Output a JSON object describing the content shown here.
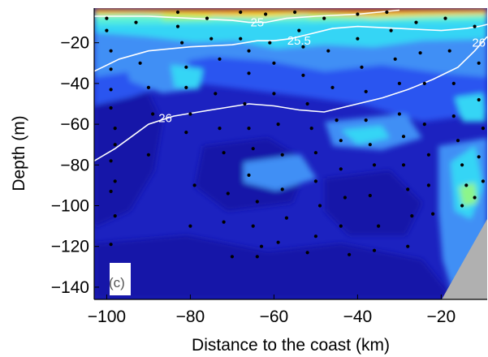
{
  "chart_data": {
    "type": "contour",
    "panel_label": "(c)",
    "xlabel": "Distance to the coast (km)",
    "ylabel": "Depth (m)",
    "xlim": [
      -103,
      -9
    ],
    "ylim": [
      -146,
      -3
    ],
    "xticks": [
      -100,
      -80,
      -60,
      -40,
      -20
    ],
    "xtick_labels": [
      "−100",
      "−80",
      "−60",
      "−40",
      "−20"
    ],
    "yticks": [
      -20,
      -40,
      -60,
      -80,
      -100,
      -120,
      -140
    ],
    "ytick_labels": [
      "−20",
      "−40",
      "−60",
      "−80",
      "−100",
      "−120",
      "−140"
    ],
    "colors": {
      "deep_blue": "#1515a8",
      "blue": "#2030e0",
      "mid_blue": "#2a55f0",
      "light_blue": "#3f8ff5",
      "cyan": "#35d5f5",
      "aqua": "#58f0d8",
      "green": "#8df58a",
      "yellow": "#f2e528",
      "orange": "#f59a18",
      "red": "#c81c0a",
      "land": "#b0b0b0",
      "isoline": "#ffffff",
      "sample_point": "#000000"
    },
    "isolines": [
      {
        "label": "25",
        "points": [
          [
            -103,
            -7
          ],
          [
            -90,
            -7
          ],
          [
            -80,
            -8
          ],
          [
            -70,
            -9
          ],
          [
            -66,
            -10
          ],
          [
            -62,
            -10
          ],
          [
            -57,
            -8
          ],
          [
            -50,
            -7
          ],
          [
            -40,
            -6
          ],
          [
            -30,
            -4
          ]
        ]
      },
      {
        "label": "25.5",
        "points": [
          [
            -103,
            -34
          ],
          [
            -97,
            -28
          ],
          [
            -90,
            -24
          ],
          [
            -80,
            -22
          ],
          [
            -70,
            -21
          ],
          [
            -64,
            -19
          ],
          [
            -60,
            -19
          ],
          [
            -56,
            -18
          ],
          [
            -52,
            -16
          ],
          [
            -46,
            -13
          ],
          [
            -40,
            -12
          ],
          [
            -30,
            -13
          ],
          [
            -20,
            -14
          ],
          [
            -14,
            -13
          ],
          [
            -11,
            -12
          ],
          [
            -9,
            -11
          ]
        ]
      },
      {
        "label": "26",
        "points": [
          [
            -103,
            -78
          ],
          [
            -98,
            -72
          ],
          [
            -94,
            -66
          ],
          [
            -90,
            -60
          ],
          [
            -84,
            -56
          ],
          [
            -78,
            -54
          ],
          [
            -72,
            -52
          ],
          [
            -66,
            -50
          ],
          [
            -60,
            -51
          ],
          [
            -54,
            -53
          ],
          [
            -48,
            -54
          ],
          [
            -40,
            -50
          ],
          [
            -34,
            -47
          ],
          [
            -28,
            -43
          ],
          [
            -22,
            -38
          ],
          [
            -16,
            -32
          ],
          [
            -12,
            -24
          ],
          [
            -9,
            -17
          ]
        ]
      }
    ],
    "isoline_labels": [
      {
        "text": "25",
        "x": -64,
        "y": -10
      },
      {
        "text": "25.5",
        "x": -54,
        "y": -19
      },
      {
        "text": "26",
        "x": -86,
        "y": -57
      },
      {
        "text": "26",
        "x": -11,
        "y": -20
      }
    ],
    "sample_points": [
      [
        -100,
        -8
      ],
      [
        -100,
        -14
      ],
      [
        -99,
        -24
      ],
      [
        -99,
        -33
      ],
      [
        -99,
        -43
      ],
      [
        -99,
        -52
      ],
      [
        -98,
        -62
      ],
      [
        -98,
        -70
      ],
      [
        -99,
        -78
      ],
      [
        -98,
        -88
      ],
      [
        -99,
        -93
      ],
      [
        -98,
        -105
      ],
      [
        -99,
        -119
      ],
      [
        -97,
        -130
      ],
      [
        -93,
        -10
      ],
      [
        -92,
        -30
      ],
      [
        -90,
        -42
      ],
      [
        -89,
        -55
      ],
      [
        -90,
        -75
      ],
      [
        -83,
        -5
      ],
      [
        -83,
        -12
      ],
      [
        -82,
        -20
      ],
      [
        -81,
        -32
      ],
      [
        -81,
        -42
      ],
      [
        -80,
        -55
      ],
      [
        -81,
        -64
      ],
      [
        -79,
        -90
      ],
      [
        -80,
        -110
      ],
      [
        -76,
        -8
      ],
      [
        -75,
        -18
      ],
      [
        -73,
        -28
      ],
      [
        -74,
        -45
      ],
      [
        -73,
        -62
      ],
      [
        -72,
        -74
      ],
      [
        -71,
        -94
      ],
      [
        -72,
        -108
      ],
      [
        -70,
        -125
      ],
      [
        -68,
        -5
      ],
      [
        -68,
        -18
      ],
      [
        -66,
        -24
      ],
      [
        -66,
        -35
      ],
      [
        -67,
        -50
      ],
      [
        -66,
        -62
      ],
      [
        -65,
        -72
      ],
      [
        -66,
        -85
      ],
      [
        -64,
        -98
      ],
      [
        -65,
        -110
      ],
      [
        -63,
        -120
      ],
      [
        -64,
        -125
      ],
      [
        -62,
        -6
      ],
      [
        -61,
        -20
      ],
      [
        -60,
        -30
      ],
      [
        -60,
        -45
      ],
      [
        -59,
        -60
      ],
      [
        -58,
        -75
      ],
      [
        -58,
        -92
      ],
      [
        -57,
        -106
      ],
      [
        -59,
        -118
      ],
      [
        -55,
        -5
      ],
      [
        -54,
        -14
      ],
      [
        -53,
        -22
      ],
      [
        -53,
        -36
      ],
      [
        -52,
        -50
      ],
      [
        -51,
        -62
      ],
      [
        -50,
        -74
      ],
      [
        -50,
        -88
      ],
      [
        -49,
        -100
      ],
      [
        -50,
        -115
      ],
      [
        -52,
        -123
      ],
      [
        -48,
        -8
      ],
      [
        -47,
        -24
      ],
      [
        -46,
        -42
      ],
      [
        -45,
        -58
      ],
      [
        -44,
        -68
      ],
      [
        -44,
        -82
      ],
      [
        -43,
        -96
      ],
      [
        -44,
        -110
      ],
      [
        -42,
        -124
      ],
      [
        -40,
        -6
      ],
      [
        -40,
        -18
      ],
      [
        -39,
        -32
      ],
      [
        -38,
        -44
      ],
      [
        -38,
        -58
      ],
      [
        -37,
        -70
      ],
      [
        -36,
        -80
      ],
      [
        -37,
        -95
      ],
      [
        -35,
        -110
      ],
      [
        -36,
        -122
      ],
      [
        -33,
        -5
      ],
      [
        -32,
        -14
      ],
      [
        -31,
        -28
      ],
      [
        -30,
        -40
      ],
      [
        -30,
        -55
      ],
      [
        -29,
        -66
      ],
      [
        -29,
        -80
      ],
      [
        -28,
        -92
      ],
      [
        -27,
        -105
      ],
      [
        -28,
        -120
      ],
      [
        -26,
        -10
      ],
      [
        -25,
        -25
      ],
      [
        -24,
        -40
      ],
      [
        -24,
        -60
      ],
      [
        -23,
        -75
      ],
      [
        -23,
        -90
      ],
      [
        -22,
        -104
      ],
      [
        -19,
        -8
      ],
      [
        -18,
        -24
      ],
      [
        -17,
        -40
      ],
      [
        -17,
        -56
      ],
      [
        -16,
        -68
      ],
      [
        -15,
        -80
      ],
      [
        -14,
        -90
      ],
      [
        -15,
        -100
      ],
      [
        -12,
        -12
      ],
      [
        -11,
        -30
      ],
      [
        -11,
        -48
      ],
      [
        -10,
        -62
      ],
      [
        -11,
        -76
      ],
      [
        -10,
        -88
      ],
      [
        -12,
        -96
      ]
    ]
  }
}
